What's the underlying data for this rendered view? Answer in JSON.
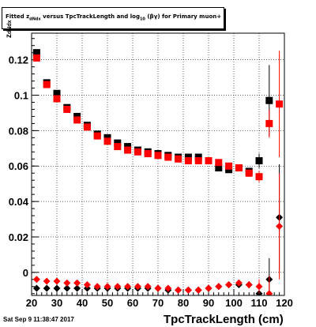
{
  "header": {
    "title_prefix": "Fitted",
    "title_mid": "versus TpcTrackLength and log",
    "title_suffix": "for Primary muon+",
    "z_symbol": "z",
    "z_sub": "dNdx",
    "log_sub": "10",
    "beta_gamma": "(βγ)"
  },
  "footer": {
    "timestamp": "Sat Sep  9 11:38:47 2017"
  },
  "chart_data": {
    "type": "scatter",
    "title": "Fitted z_dNdx versus TpcTrackLength and log10(βγ) for Primary muon+",
    "xlabel": "TpcTrackLength (cm)",
    "ylabel": "z_dNdx",
    "xlim": [
      20,
      120
    ],
    "ylim": [
      -0.013,
      0.135
    ],
    "xticks": [
      20,
      30,
      40,
      50,
      60,
      70,
      80,
      90,
      100,
      110,
      120
    ],
    "yticks": [
      0,
      0.02,
      0.04,
      0.06,
      0.08,
      0.1,
      0.12
    ],
    "ytick_labels": [
      "0",
      "0.02",
      "0.04",
      "0.06",
      "0.08",
      "0.1",
      "0.12"
    ],
    "grid": true,
    "series": [
      {
        "marker": "square",
        "color": "#000000",
        "x": [
          22,
          26,
          30,
          34,
          38,
          42,
          46,
          50,
          54,
          58,
          62,
          66,
          70,
          74,
          78,
          82,
          86,
          90,
          94,
          98,
          102,
          106,
          110,
          114
        ],
        "y": [
          0.124,
          0.107,
          0.101,
          0.093,
          0.088,
          0.083,
          0.078,
          0.076,
          0.073,
          0.071,
          0.069,
          0.068,
          0.067,
          0.066,
          0.065,
          0.065,
          0.065,
          0.063,
          0.059,
          0.058,
          0.059,
          0.057,
          0.063,
          0.097
        ],
        "yerr": [
          0.001,
          0.001,
          0.001,
          0.001,
          0.001,
          0.001,
          0.001,
          0.001,
          0.001,
          0.001,
          0.001,
          0.001,
          0.001,
          0.001,
          0.001,
          0.001,
          0.001,
          0.001,
          0.001,
          0.001,
          0.001,
          0.002,
          0.004,
          0.02
        ]
      },
      {
        "marker": "square",
        "color": "#ff0000",
        "x": [
          22,
          26,
          30,
          34,
          38,
          42,
          46,
          50,
          54,
          58,
          62,
          66,
          70,
          74,
          78,
          82,
          86,
          90,
          94,
          98,
          102,
          106,
          110,
          114,
          118
        ],
        "y": [
          0.121,
          0.106,
          0.098,
          0.092,
          0.086,
          0.082,
          0.077,
          0.074,
          0.071,
          0.069,
          0.068,
          0.067,
          0.066,
          0.065,
          0.064,
          0.063,
          0.063,
          0.063,
          0.062,
          0.06,
          0.059,
          0.056,
          0.054,
          0.084,
          0.095
        ],
        "yerr": [
          0.001,
          0.001,
          0.001,
          0.001,
          0.001,
          0.001,
          0.001,
          0.001,
          0.001,
          0.001,
          0.001,
          0.001,
          0.001,
          0.001,
          0.001,
          0.001,
          0.001,
          0.001,
          0.001,
          0.001,
          0.001,
          0.002,
          0.003,
          0.008,
          0.03
        ]
      },
      {
        "marker": "diamond",
        "color": "#000000",
        "x": [
          22,
          26,
          30,
          34,
          38,
          42,
          46,
          50,
          54,
          58,
          62,
          66,
          70,
          74,
          78,
          82,
          86,
          90,
          94,
          98,
          102,
          106,
          110,
          114,
          118
        ],
        "y": [
          -0.009,
          -0.009,
          -0.009,
          -0.009,
          -0.009,
          -0.009,
          -0.009,
          -0.009,
          -0.009,
          -0.009,
          -0.009,
          -0.009,
          -0.009,
          -0.01,
          -0.01,
          -0.01,
          -0.01,
          -0.009,
          -0.008,
          -0.007,
          -0.007,
          -0.007,
          -0.012,
          -0.004,
          0.031
        ],
        "yerr": [
          0.001,
          0.001,
          0.001,
          0.001,
          0.001,
          0.001,
          0.001,
          0.001,
          0.001,
          0.001,
          0.001,
          0.001,
          0.001,
          0.001,
          0.001,
          0.001,
          0.001,
          0.001,
          0.001,
          0.001,
          0.001,
          0.002,
          0.004,
          0.012,
          0.03
        ]
      },
      {
        "marker": "diamond",
        "color": "#ff0000",
        "x": [
          22,
          26,
          30,
          34,
          38,
          42,
          46,
          50,
          54,
          58,
          62,
          66,
          70,
          74,
          78,
          82,
          86,
          90,
          94,
          98,
          102,
          106,
          110,
          114,
          118
        ],
        "y": [
          -0.004,
          -0.005,
          -0.005,
          -0.006,
          -0.006,
          -0.007,
          -0.008,
          -0.008,
          -0.008,
          -0.008,
          -0.008,
          -0.008,
          -0.009,
          -0.009,
          -0.01,
          -0.01,
          -0.01,
          -0.009,
          -0.008,
          -0.007,
          -0.006,
          -0.007,
          -0.008,
          -0.012,
          0.026
        ],
        "yerr": [
          0.001,
          0.001,
          0.001,
          0.001,
          0.001,
          0.001,
          0.001,
          0.001,
          0.001,
          0.001,
          0.001,
          0.001,
          0.001,
          0.001,
          0.001,
          0.001,
          0.001,
          0.001,
          0.001,
          0.001,
          0.001,
          0.002,
          0.004,
          0.01,
          0.03
        ]
      }
    ]
  }
}
